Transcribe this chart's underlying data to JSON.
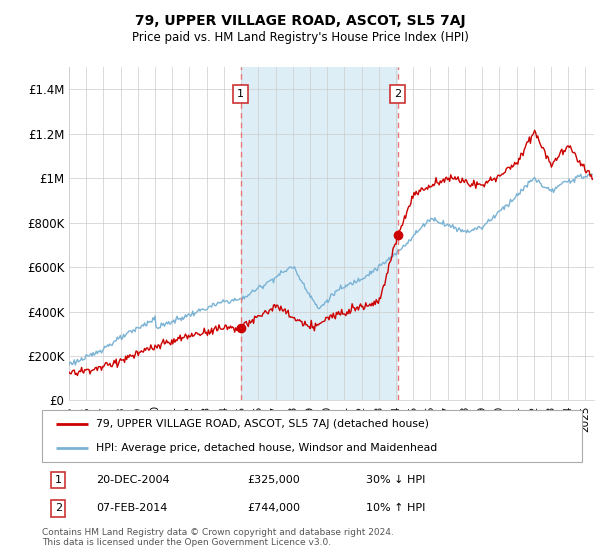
{
  "title": "79, UPPER VILLAGE ROAD, ASCOT, SL5 7AJ",
  "subtitle": "Price paid vs. HM Land Registry's House Price Index (HPI)",
  "ylabel_ticks": [
    "£0",
    "£200K",
    "£400K",
    "£600K",
    "£800K",
    "£1M",
    "£1.2M",
    "£1.4M"
  ],
  "ylim": [
    0,
    1500000
  ],
  "xlim_start": 1995.0,
  "xlim_end": 2025.5,
  "sale1_x": 2004.97,
  "sale1_y": 325000,
  "sale2_x": 2014.1,
  "sale2_y": 744000,
  "sale1_label": "1",
  "sale2_label": "2",
  "vline1_x": 2004.97,
  "vline2_x": 2014.1,
  "legend_red": "79, UPPER VILLAGE ROAD, ASCOT, SL5 7AJ (detached house)",
  "legend_blue": "HPI: Average price, detached house, Windsor and Maidenhead",
  "table_row1": [
    "1",
    "20-DEC-2004",
    "£325,000",
    "30% ↓ HPI"
  ],
  "table_row2": [
    "2",
    "07-FEB-2014",
    "£744,000",
    "10% ↑ HPI"
  ],
  "footnote": "Contains HM Land Registry data © Crown copyright and database right 2024.\nThis data is licensed under the Open Government Licence v3.0.",
  "red_color": "#cc0000",
  "blue_color": "#7ab3d4",
  "shade_color": "#ddeef7",
  "vline_color": "#e87878",
  "grid_color": "#cccccc",
  "box_color": "#cc3333",
  "title_font": "DejaVu Sans",
  "ytick_fontsize": 8.5,
  "xtick_fontsize": 7.5
}
